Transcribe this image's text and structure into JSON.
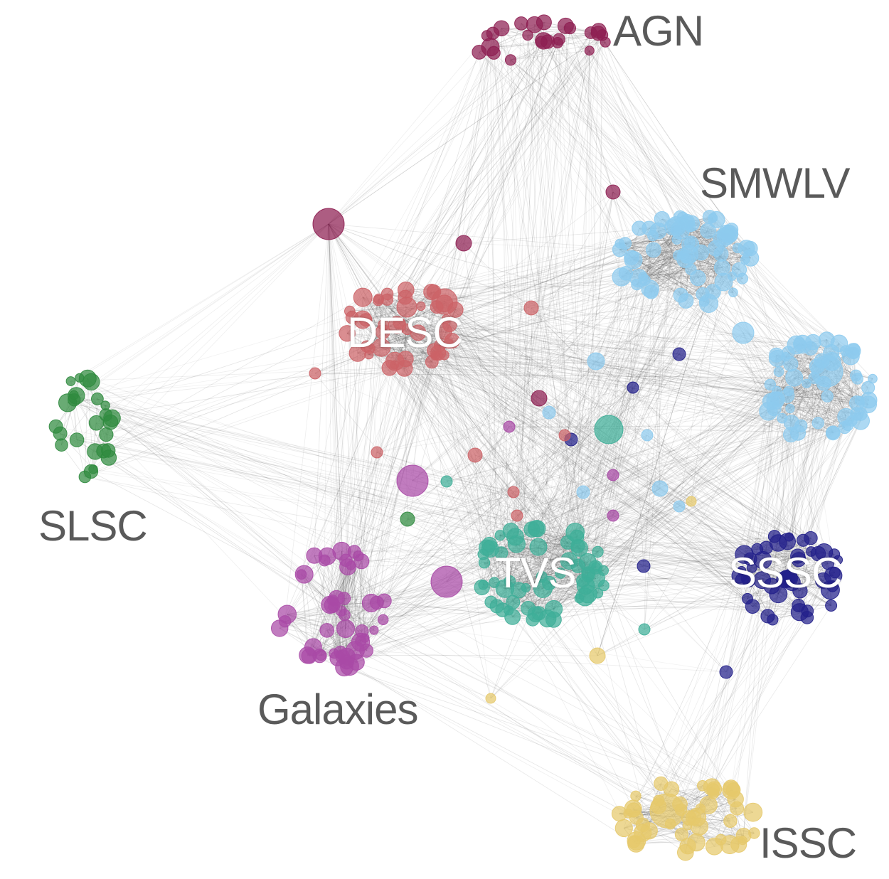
{
  "diagram": {
    "type": "network-graph",
    "edge_color": "#333333",
    "clusters": [
      {
        "id": "agn",
        "label": "AGN",
        "color": "#8e1f52",
        "label_style": "outside"
      },
      {
        "id": "smwlv",
        "label": "SMWLV",
        "color": "#8ecbee",
        "label_style": "outside"
      },
      {
        "id": "desc",
        "label": "DESC",
        "color": "#cc6367",
        "label_style": "inside"
      },
      {
        "id": "slsc",
        "label": "SLSC",
        "color": "#2f8a3e",
        "label_style": "outside"
      },
      {
        "id": "tvs",
        "label": "TVS",
        "color": "#3fae98",
        "label_style": "inside"
      },
      {
        "id": "sssc",
        "label": "SSSC",
        "color": "#22208a",
        "label_style": "inside"
      },
      {
        "id": "galaxies",
        "label": "Galaxies",
        "color": "#a94aa6",
        "label_style": "outside"
      },
      {
        "id": "issc",
        "label": "ISSC",
        "color": "#e6c96b",
        "label_style": "outside"
      }
    ]
  }
}
